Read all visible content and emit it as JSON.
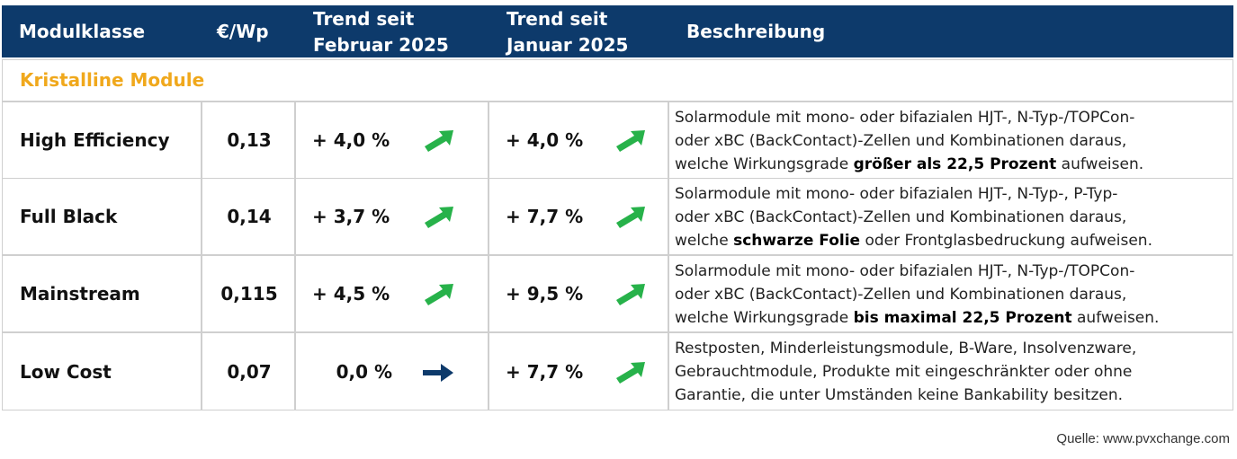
{
  "header": {
    "col_class": "Modulklasse",
    "col_price": "€/Wp",
    "col_trend1_line1": "Trend seit",
    "col_trend1_line2": "Februar 2025",
    "col_trend2_line1": "Trend seit",
    "col_trend2_line2": "Januar 2025",
    "col_desc": "Beschreibung"
  },
  "category": "Kristalline Module",
  "rows": [
    {
      "name": "High Efficiency",
      "price": "0,13",
      "trend1": "+ 4,0 %",
      "trend1_icon": "arrow-up-right-icon",
      "trend2": "+ 4,0 %",
      "trend2_icon": "arrow-up-right-icon",
      "desc_l1": "Solarmodule mit mono- oder bifazialen HJT-, N-Typ-/TOPCon-",
      "desc_l2": "oder xBC (BackContact)-Zellen und Kombinationen daraus,",
      "desc_l3_pre": "welche Wirkungsgrade ",
      "desc_l3_bold": "größer als 22,5 Prozent",
      "desc_l3_post": " aufweisen."
    },
    {
      "name": "Full Black",
      "price": "0,14",
      "trend1": "+ 3,7 %",
      "trend1_icon": "arrow-up-right-icon",
      "trend2": "+ 7,7 %",
      "trend2_icon": "arrow-up-right-icon",
      "desc_l1": "Solarmodule mit mono- oder bifazialen HJT-, N-Typ-, P-Typ-",
      "desc_l2": "oder xBC (BackContact)-Zellen und Kombinationen daraus,",
      "desc_l3_pre": "welche ",
      "desc_l3_bold": "schwarze Folie",
      "desc_l3_post": " oder Frontglasbedruckung aufweisen."
    },
    {
      "name": "Mainstream",
      "price": "0,115",
      "trend1": "+ 4,5 %",
      "trend1_icon": "arrow-up-right-icon",
      "trend2": "+ 9,5 %",
      "trend2_icon": "arrow-up-right-icon",
      "desc_l1": "Solarmodule mit mono- oder bifazialen HJT-, N-Typ-/TOPCon-",
      "desc_l2": "oder xBC (BackContact)-Zellen und Kombinationen daraus,",
      "desc_l3_pre": "welche Wirkungsgrade ",
      "desc_l3_bold": "bis maximal 22,5 Prozent",
      "desc_l3_post": " aufweisen."
    },
    {
      "name": "Low Cost",
      "price": "0,07",
      "trend1": "0,0 %",
      "trend1_icon": "arrow-right-icon",
      "trend2": "+ 7,7 %",
      "trend2_icon": "arrow-up-right-icon",
      "desc_l1": "Restposten, Minderleistungsmodule, B-Ware, Insolvenzware,",
      "desc_l2": "Gebrauchtmodule, Produkte mit eingeschränkter oder ohne",
      "desc_l3_pre": "Garantie, die unter Umständen keine Bankability besitzen.",
      "desc_l3_bold": "",
      "desc_l3_post": ""
    }
  ],
  "colors": {
    "header_bg": "#0d3a6b",
    "category_text": "#f0a81c",
    "arrow_up": "#27b24a",
    "arrow_flat": "#0d3a6b"
  },
  "source": "Quelle: www.pvxchange.com"
}
